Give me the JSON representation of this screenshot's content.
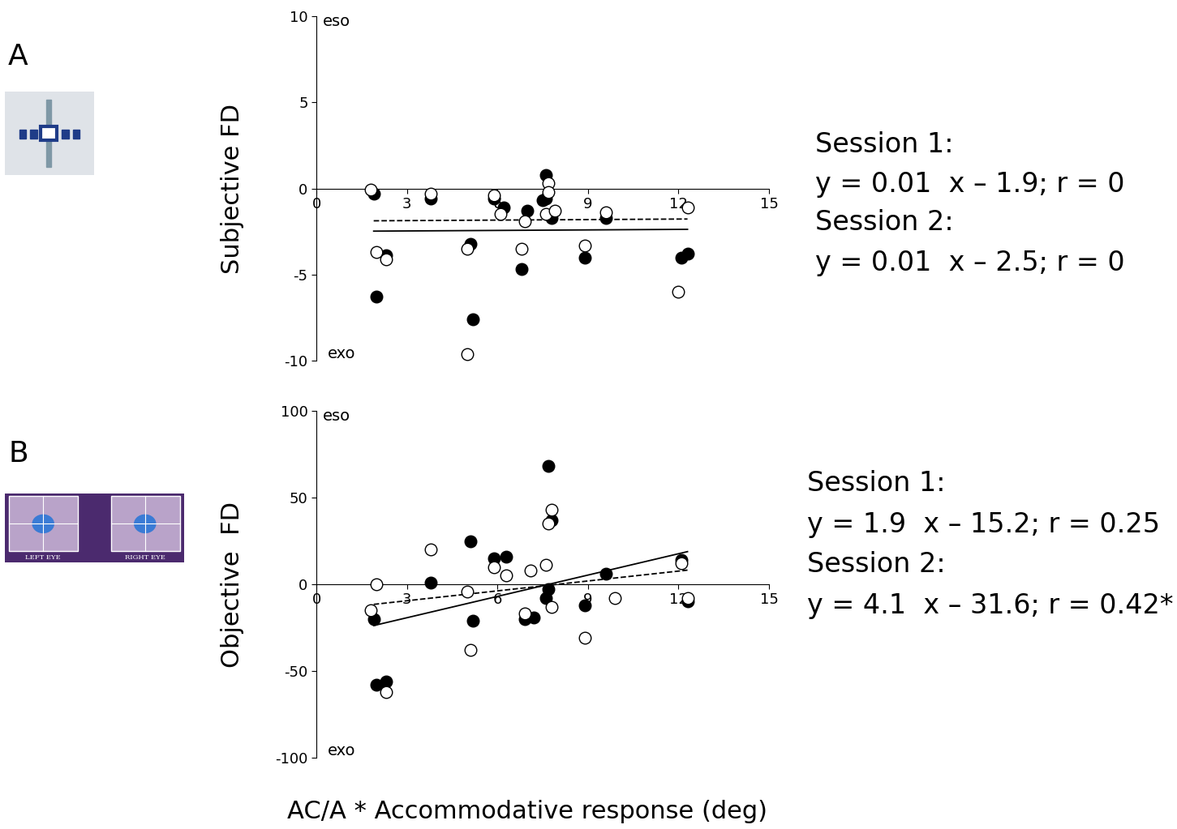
{
  "chart_data": [
    {
      "type": "scatter",
      "panel_label": "A",
      "ylabel": "Subjective FD",
      "top_label": "eso",
      "bottom_label": "exo",
      "xlim": [
        0,
        15
      ],
      "xticks": [
        0,
        3,
        6,
        9,
        12,
        15
      ],
      "ylim": [
        -10,
        10
      ],
      "yticks": [
        -10,
        -5,
        0,
        5,
        10
      ],
      "series": [
        {
          "color": "#000000",
          "marker": "filled",
          "x": [
            1.9,
            2.0,
            2.3,
            3.8,
            5.1,
            5.2,
            5.9,
            6.2,
            6.8,
            7.0,
            7.6,
            7.6,
            7.8,
            8.9,
            9.6,
            12.1,
            12.3,
            7.5
          ],
          "values": [
            -0.3,
            -6.3,
            -3.9,
            -0.6,
            -3.2,
            -7.6,
            -0.6,
            -1.1,
            -4.7,
            -1.3,
            -0.6,
            0.8,
            -1.7,
            -4.0,
            -1.7,
            -4.0,
            -3.8,
            -0.7
          ]
        },
        {
          "color": "#000000",
          "marker": "open",
          "x": [
            1.8,
            2.0,
            2.3,
            3.8,
            5.0,
            5.0,
            5.9,
            6.1,
            6.8,
            6.9,
            7.6,
            7.7,
            7.7,
            7.9,
            8.9,
            9.6,
            12.0,
            12.3
          ],
          "values": [
            -0.05,
            -3.7,
            -4.1,
            -0.3,
            -3.5,
            -9.6,
            -0.4,
            -1.5,
            -3.5,
            -1.9,
            -1.5,
            0.3,
            -0.2,
            -1.3,
            -3.3,
            -1.4,
            -6.0,
            -1.1
          ]
        }
      ],
      "fits": [
        {
          "title": "Session 1:",
          "text": "y = 0.01  x – 1.9; r = 0",
          "slope": 0.01,
          "intercept": -1.9,
          "x_range": [
            1.9,
            12.3
          ],
          "line_style": "dashed"
        },
        {
          "title": "Session 2:",
          "text": "y = 0.01  x – 2.5; r = 0",
          "slope": 0.01,
          "intercept": -2.5,
          "x_range": [
            1.9,
            12.3
          ],
          "line_style": "solid"
        }
      ]
    },
    {
      "type": "scatter",
      "panel_label": "B",
      "ylabel": "Objective  FD",
      "xlabel": "AC/A * Accommodative response (deg)",
      "top_label": "eso",
      "bottom_label": "exo",
      "icon_texts": [
        "LEFT EYE",
        "RIGHT EYE"
      ],
      "xlim": [
        0,
        15
      ],
      "xticks": [
        0,
        3,
        6,
        9,
        12,
        15
      ],
      "ylim": [
        -100,
        100
      ],
      "yticks": [
        -100,
        -50,
        0,
        50,
        100
      ],
      "series": [
        {
          "color": "#000000",
          "marker": "filled",
          "x": [
            1.9,
            2.0,
            2.3,
            3.8,
            5.1,
            5.2,
            5.9,
            6.3,
            6.9,
            7.2,
            7.7,
            7.8,
            7.7,
            7.6,
            8.9,
            9.6,
            12.1,
            12.3
          ],
          "values": [
            -20,
            -58,
            -56,
            1,
            25,
            -21,
            15,
            16,
            -20,
            -19,
            68,
            37,
            -3,
            -8,
            -12,
            6,
            14,
            -10
          ]
        },
        {
          "color": "#000000",
          "marker": "open",
          "x": [
            1.8,
            2.0,
            2.3,
            3.8,
            5.0,
            5.1,
            5.9,
            6.3,
            6.9,
            7.1,
            7.6,
            7.7,
            7.8,
            7.8,
            8.9,
            9.9,
            12.1,
            12.3
          ],
          "values": [
            -15,
            0,
            -62,
            20,
            -4,
            -38,
            10,
            5,
            -17,
            8,
            11,
            35,
            43,
            -13,
            -31,
            -8,
            12,
            -8
          ]
        }
      ],
      "fits": [
        {
          "title": "Session 1:",
          "text": "y = 1.9  x – 15.2; r = 0.25",
          "slope": 1.9,
          "intercept": -15.2,
          "x_range": [
            1.9,
            12.3
          ],
          "line_style": "dashed"
        },
        {
          "title": "Session 2:",
          "text": "y = 4.1  x – 31.6; r = 0.42*",
          "slope": 4.1,
          "intercept": -31.6,
          "x_range": [
            1.9,
            12.3
          ],
          "line_style": "solid"
        }
      ]
    }
  ]
}
